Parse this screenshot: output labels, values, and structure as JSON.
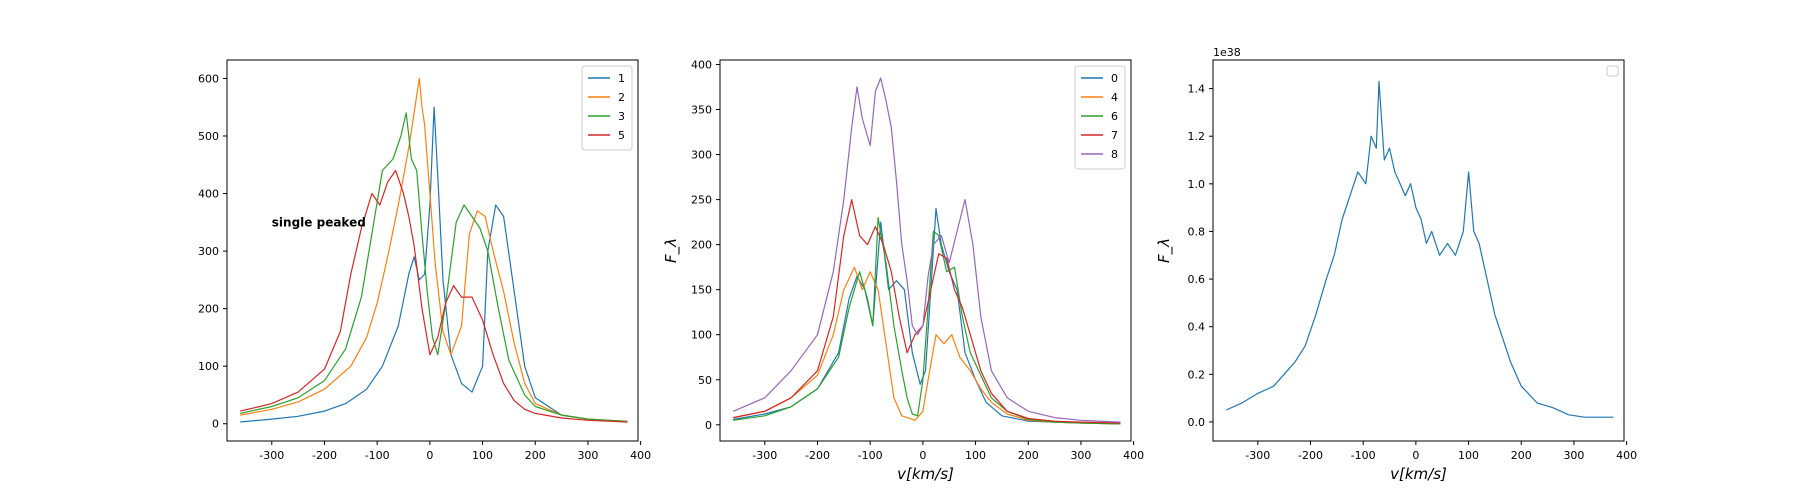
{
  "chart_data": [
    {
      "type": "line",
      "xlim": [
        -385,
        395
      ],
      "ylim": [
        -30,
        632
      ],
      "xticks": [
        -300,
        -200,
        -100,
        0,
        100,
        200,
        300,
        400
      ],
      "yticks": [
        0,
        100,
        200,
        300,
        400,
        500,
        600
      ],
      "xlabel": "",
      "ylabel": "",
      "grid": false,
      "legend_position": "upper-right",
      "annotation": "single peaked",
      "series": [
        {
          "name": "1",
          "color": "#1f77b4",
          "x": [
            -360,
            -300,
            -250,
            -200,
            -160,
            -120,
            -90,
            -60,
            -40,
            -30,
            -20,
            -10,
            0,
            8,
            15,
            25,
            40,
            60,
            80,
            100,
            110,
            125,
            140,
            160,
            180,
            200,
            250,
            300,
            375
          ],
          "y": [
            3,
            8,
            13,
            22,
            35,
            60,
            100,
            170,
            260,
            290,
            250,
            260,
            380,
            550,
            430,
            250,
            120,
            70,
            55,
            100,
            300,
            380,
            360,
            230,
            100,
            45,
            15,
            8,
            3
          ]
        },
        {
          "name": "2",
          "color": "#ff7f0e",
          "x": [
            -360,
            -300,
            -250,
            -200,
            -150,
            -120,
            -100,
            -80,
            -60,
            -40,
            -30,
            -20,
            -15,
            -10,
            0,
            10,
            25,
            40,
            60,
            75,
            90,
            105,
            120,
            140,
            160,
            180,
            200,
            250,
            300,
            375
          ],
          "y": [
            15,
            25,
            38,
            60,
            100,
            150,
            210,
            290,
            380,
            480,
            540,
            600,
            550,
            520,
            400,
            280,
            160,
            120,
            170,
            330,
            370,
            360,
            300,
            230,
            140,
            70,
            35,
            15,
            8,
            4
          ]
        },
        {
          "name": "3",
          "color": "#2ca02c",
          "x": [
            -360,
            -300,
            -250,
            -200,
            -160,
            -130,
            -110,
            -90,
            -70,
            -55,
            -45,
            -35,
            -25,
            -15,
            -5,
            5,
            15,
            30,
            50,
            65,
            80,
            95,
            110,
            130,
            150,
            180,
            200,
            250,
            300,
            375
          ],
          "y": [
            18,
            30,
            45,
            75,
            130,
            220,
            330,
            440,
            460,
            500,
            540,
            460,
            440,
            330,
            230,
            150,
            120,
            210,
            350,
            380,
            360,
            340,
            300,
            200,
            110,
            50,
            30,
            15,
            8,
            4
          ]
        },
        {
          "name": "5",
          "color": "#d62728",
          "x": [
            -360,
            -300,
            -250,
            -200,
            -170,
            -150,
            -130,
            -110,
            -95,
            -80,
            -65,
            -50,
            -40,
            -30,
            -15,
            0,
            15,
            30,
            45,
            60,
            80,
            100,
            120,
            140,
            160,
            180,
            200,
            250,
            300,
            375
          ],
          "y": [
            22,
            35,
            55,
            95,
            160,
            260,
            340,
            400,
            380,
            420,
            440,
            400,
            360,
            310,
            200,
            120,
            150,
            210,
            240,
            220,
            220,
            180,
            120,
            70,
            40,
            25,
            18,
            10,
            6,
            3
          ]
        }
      ]
    },
    {
      "type": "line",
      "xlim": [
        -385,
        395
      ],
      "ylim": [
        -18,
        405
      ],
      "xticks": [
        -300,
        -200,
        -100,
        0,
        100,
        200,
        300,
        400
      ],
      "yticks": [
        0,
        50,
        100,
        150,
        200,
        250,
        300,
        350,
        400
      ],
      "xlabel": "v[km/s]",
      "ylabel": "F_λ",
      "grid": false,
      "legend_position": "upper-right",
      "series": [
        {
          "name": "0",
          "color": "#1f77b4",
          "x": [
            -360,
            -300,
            -250,
            -200,
            -160,
            -140,
            -125,
            -110,
            -95,
            -80,
            -65,
            -50,
            -35,
            -20,
            -5,
            5,
            15,
            25,
            35,
            50,
            65,
            80,
            100,
            120,
            150,
            200,
            250,
            300,
            375
          ],
          "y": [
            6,
            12,
            20,
            40,
            80,
            140,
            165,
            150,
            110,
            225,
            150,
            160,
            150,
            80,
            45,
            60,
            150,
            240,
            200,
            170,
            150,
            80,
            50,
            25,
            10,
            4,
            3,
            2,
            1
          ]
        },
        {
          "name": "4",
          "color": "#ff7f0e",
          "x": [
            -360,
            -300,
            -250,
            -200,
            -170,
            -150,
            -130,
            -115,
            -100,
            -85,
            -70,
            -55,
            -40,
            -30,
            -15,
            0,
            10,
            25,
            40,
            55,
            70,
            90,
            110,
            130,
            160,
            200,
            250,
            300,
            375
          ],
          "y": [
            8,
            15,
            30,
            55,
            100,
            150,
            175,
            150,
            170,
            150,
            90,
            30,
            10,
            8,
            5,
            15,
            50,
            100,
            90,
            100,
            75,
            60,
            40,
            25,
            12,
            5,
            3,
            2,
            1
          ]
        },
        {
          "name": "6",
          "color": "#2ca02c",
          "x": [
            -360,
            -300,
            -250,
            -200,
            -160,
            -140,
            -120,
            -105,
            -95,
            -85,
            -70,
            -55,
            -40,
            -30,
            -20,
            -10,
            0,
            10,
            20,
            30,
            45,
            60,
            75,
            90,
            110,
            130,
            160,
            200,
            250,
            300,
            375
          ],
          "y": [
            5,
            10,
            20,
            40,
            75,
            130,
            170,
            140,
            110,
            230,
            180,
            110,
            60,
            30,
            12,
            10,
            50,
            130,
            215,
            210,
            170,
            175,
            120,
            80,
            55,
            30,
            15,
            6,
            3,
            2,
            1
          ]
        },
        {
          "name": "7",
          "color": "#d62728",
          "x": [
            -360,
            -300,
            -250,
            -200,
            -170,
            -150,
            -135,
            -120,
            -105,
            -90,
            -75,
            -60,
            -45,
            -30,
            -15,
            0,
            15,
            30,
            45,
            60,
            75,
            90,
            110,
            130,
            160,
            200,
            250,
            300,
            375
          ],
          "y": [
            8,
            15,
            30,
            60,
            120,
            210,
            250,
            210,
            200,
            220,
            200,
            170,
            120,
            80,
            100,
            110,
            150,
            190,
            185,
            150,
            130,
            100,
            60,
            35,
            15,
            7,
            4,
            3,
            2
          ]
        },
        {
          "name": "8",
          "color": "#9467bd",
          "x": [
            -360,
            -300,
            -250,
            -200,
            -170,
            -150,
            -135,
            -125,
            -115,
            -100,
            -90,
            -80,
            -70,
            -60,
            -50,
            -40,
            -30,
            -20,
            -10,
            0,
            10,
            20,
            35,
            50,
            65,
            80,
            95,
            110,
            130,
            160,
            200,
            250,
            300,
            375
          ],
          "y": [
            15,
            30,
            60,
            100,
            170,
            250,
            330,
            375,
            340,
            310,
            370,
            385,
            360,
            330,
            270,
            200,
            160,
            110,
            100,
            110,
            165,
            200,
            210,
            180,
            215,
            250,
            200,
            120,
            60,
            30,
            15,
            8,
            5,
            3
          ]
        }
      ]
    },
    {
      "type": "line",
      "xlim": [
        -385,
        395
      ],
      "ylim": [
        -0.08,
        1.52
      ],
      "xticks": [
        -300,
        -200,
        -100,
        0,
        100,
        200,
        300,
        400
      ],
      "yticks": [
        0.0,
        0.2,
        0.4,
        0.6,
        0.8,
        1.0,
        1.2,
        1.4
      ],
      "ytick_labels": [
        "0.0",
        "0.2",
        "0.4",
        "0.6",
        "0.8",
        "1.0",
        "1.2",
        "1.4"
      ],
      "offset_label": "1e38",
      "xlabel": "v[km/s]",
      "ylabel": "F_λ",
      "grid": false,
      "legend_position": "upper-right",
      "series": [
        {
          "name": "",
          "color": "#1f77b4",
          "x": [
            -360,
            -330,
            -300,
            -270,
            -250,
            -230,
            -210,
            -190,
            -170,
            -155,
            -140,
            -125,
            -110,
            -95,
            -85,
            -75,
            -70,
            -60,
            -50,
            -40,
            -30,
            -20,
            -10,
            0,
            10,
            20,
            30,
            45,
            60,
            75,
            90,
            100,
            110,
            120,
            135,
            150,
            165,
            180,
            200,
            230,
            260,
            290,
            320,
            350,
            375
          ],
          "y": [
            0.05,
            0.08,
            0.12,
            0.15,
            0.2,
            0.25,
            0.32,
            0.45,
            0.6,
            0.7,
            0.85,
            0.95,
            1.05,
            1.0,
            1.2,
            1.15,
            1.43,
            1.1,
            1.15,
            1.05,
            1.0,
            0.95,
            1.0,
            0.9,
            0.85,
            0.75,
            0.8,
            0.7,
            0.75,
            0.7,
            0.8,
            1.05,
            0.8,
            0.75,
            0.6,
            0.45,
            0.35,
            0.25,
            0.15,
            0.08,
            0.06,
            0.03,
            0.02,
            0.02,
            0.02
          ]
        }
      ]
    }
  ]
}
